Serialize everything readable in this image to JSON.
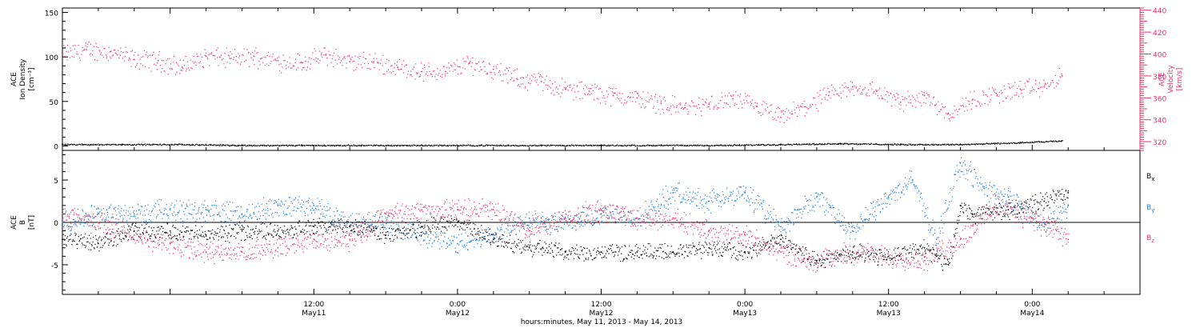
{
  "figure": {
    "x_axis_caption": "hours:minutes, May 11, 2013 - May 14, 2013",
    "x_ticks": [
      {
        "time": "12:00",
        "date": "May11",
        "hour": 12
      },
      {
        "time": "0:00",
        "date": "May12",
        "hour": 24
      },
      {
        "time": "12:00",
        "date": "May12",
        "hour": 36
      },
      {
        "time": "0:00",
        "date": "May13",
        "hour": 48
      },
      {
        "time": "12:00",
        "date": "May13",
        "hour": 60
      },
      {
        "time": "0:00",
        "date": "May14",
        "hour": 72
      }
    ],
    "x_range_hours": [
      -9,
      81
    ]
  },
  "chart_data": [
    {
      "type": "scatter",
      "panel": "top",
      "ylabel_lines": [
        "ACE",
        "Ion Density",
        "[cm⁻³]"
      ],
      "ylim": [
        -5,
        155
      ],
      "yticks": [
        "0",
        "50",
        "100",
        "150"
      ],
      "ytick_values": [
        0,
        50,
        100,
        150
      ],
      "y2label_lines": [
        "ACE",
        "Velocity",
        "[km/s]"
      ],
      "y2lim": [
        312,
        442
      ],
      "y2ticks": [
        "320",
        "340",
        "360",
        "380",
        "400",
        "420",
        "440"
      ],
      "y2tick_values": [
        320,
        340,
        360,
        380,
        400,
        420,
        440
      ],
      "series": [
        {
          "name": "Velocity",
          "axis": "right",
          "color": "#e8336b",
          "x": [
            -9,
            -7,
            -5,
            -3,
            -1,
            1,
            3,
            5,
            7,
            9,
            11,
            13,
            15,
            17,
            19,
            21,
            23,
            25,
            27,
            29,
            31,
            33,
            35,
            37,
            39,
            41,
            43,
            45,
            47,
            49,
            51,
            53,
            55,
            57,
            59,
            61,
            63,
            65,
            67,
            69,
            71,
            73,
            74.5
          ],
          "y": [
            400,
            404,
            402,
            395,
            394,
            388,
            398,
            396,
            398,
            394,
            392,
            399,
            393,
            393,
            388,
            384,
            384,
            392,
            386,
            377,
            375,
            368,
            366,
            362,
            360,
            355,
            351,
            354,
            359,
            352,
            342,
            352,
            362,
            370,
            366,
            356,
            362,
            346,
            358,
            364,
            368,
            370,
            380
          ]
        },
        {
          "name": "Ion Density",
          "axis": "left",
          "color": "#000000",
          "x": [
            -9,
            -4,
            1,
            6,
            11,
            16,
            21,
            26,
            31,
            36,
            41,
            46,
            51,
            56,
            61,
            66,
            71,
            74.5
          ],
          "y": [
            2,
            2,
            2,
            1,
            1,
            1,
            1,
            1,
            1,
            1,
            1,
            1,
            2,
            3,
            2,
            2,
            4,
            6
          ]
        }
      ]
    },
    {
      "type": "scatter",
      "panel": "bottom",
      "ylabel_lines": [
        "ACE",
        "B",
        "[nT]"
      ],
      "ylim": [
        -8.5,
        8.5
      ],
      "yticks": [
        "-5",
        "0",
        "5"
      ],
      "ytick_values": [
        -5,
        0,
        5
      ],
      "series": [
        {
          "name": "Bx",
          "color": "#000000",
          "x": [
            -9,
            -6,
            -3,
            0,
            3,
            6,
            9,
            12,
            15,
            18,
            21,
            24,
            27,
            30,
            33,
            36,
            39,
            42,
            45,
            48,
            51,
            54,
            57,
            60,
            63,
            64,
            65,
            66,
            67,
            70,
            73,
            75
          ],
          "y": [
            -2,
            -2.5,
            -1,
            -1,
            -1.5,
            -1,
            -1,
            -0.5,
            -0.5,
            -1.5,
            -0.5,
            0,
            -2,
            -3,
            -3.5,
            -3.5,
            -3.5,
            -3.5,
            -3,
            -3.5,
            -2,
            -4.5,
            -3.5,
            -4,
            -3,
            -4,
            -5,
            2,
            1,
            1.5,
            2.5,
            3.5
          ]
        },
        {
          "name": "By",
          "color": "#1f7fd6",
          "x": [
            -9,
            -6,
            -3,
            0,
            3,
            6,
            9,
            12,
            15,
            18,
            21,
            24,
            27,
            30,
            33,
            36,
            39,
            42,
            45,
            48,
            51,
            54,
            57,
            60,
            62,
            64,
            66,
            68,
            70,
            73,
            75
          ],
          "y": [
            0,
            1,
            1,
            1.5,
            1.5,
            1,
            2,
            2,
            0,
            0,
            -1.5,
            -2.5,
            -1.5,
            0.5,
            0,
            1,
            0.5,
            3.5,
            2.5,
            3.5,
            -0.5,
            3,
            -1,
            3,
            5,
            -2,
            7,
            4,
            3,
            -0.5,
            2
          ]
        },
        {
          "name": "Bz",
          "color": "#e8336b",
          "x": [
            -9,
            -6,
            -3,
            0,
            3,
            6,
            9,
            12,
            15,
            18,
            21,
            24,
            27,
            30,
            33,
            36,
            39,
            42,
            45,
            48,
            51,
            54,
            57,
            60,
            63,
            66,
            69,
            72,
            75
          ],
          "y": [
            1,
            0,
            -1.5,
            -2.5,
            -3.5,
            -3.5,
            -3,
            -2,
            -2,
            1,
            1.5,
            1.5,
            1.5,
            -1,
            0.5,
            1.5,
            0.5,
            0.5,
            -1,
            -1.5,
            -3.5,
            -4.5,
            -3.5,
            -4,
            -4.5,
            -2,
            2,
            0.5,
            -2
          ]
        }
      ],
      "legend": [
        {
          "letter": "B",
          "sub": "x",
          "color": "#000000"
        },
        {
          "letter": "B",
          "sub": "y",
          "color": "#1f7fd6"
        },
        {
          "letter": "B",
          "sub": "z",
          "color": "#e8336b"
        }
      ],
      "legend_position": "right"
    }
  ]
}
